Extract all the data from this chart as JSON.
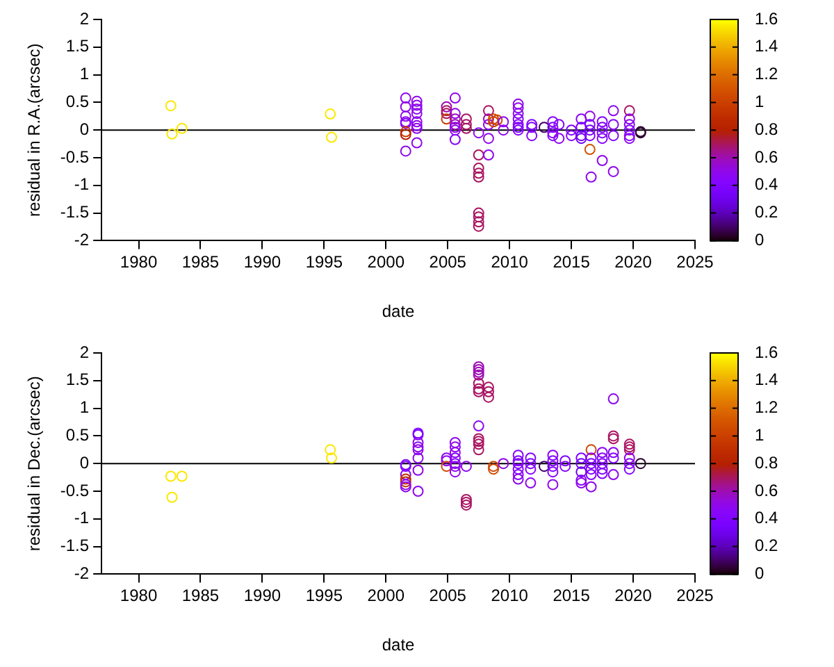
{
  "chart_data": [
    {
      "type": "scatter",
      "xlabel": "date",
      "ylabel": "residual in R.A.(arcsec)",
      "xlim": [
        1977,
        2025
      ],
      "ylim": [
        -2,
        2
      ],
      "xticks": [
        1980,
        1985,
        1990,
        1995,
        2000,
        2005,
        2010,
        2015,
        2020,
        2025
      ],
      "yticks": [
        -2,
        -1.5,
        -1,
        -0.5,
        0,
        0.5,
        1,
        1.5,
        2
      ],
      "clim": [
        0,
        1.6
      ],
      "cticks": [
        0,
        0.2,
        0.4,
        0.6,
        0.8,
        1,
        1.2,
        1.4,
        1.6
      ],
      "marker": "circle",
      "grid": false,
      "legend": false,
      "ref_lines": [
        {
          "axis": "y",
          "value": 0,
          "color": "#000000"
        }
      ],
      "series": [
        {
          "x": [
            1982.6,
            1982.7,
            1983.5,
            1995.5,
            1995.6,
            2001.6,
            2001.6,
            2001.6,
            2001.6,
            2001.6,
            2001.6,
            2001.6,
            2001.6,
            2002.5,
            2002.5,
            2002.5,
            2002.5,
            2002.5,
            2002.5,
            2002.5,
            2002.5,
            2004.9,
            2004.9,
            2004.9,
            2004.9,
            2005.6,
            2005.6,
            2005.6,
            2005.6,
            2005.6,
            2005.6,
            2005.6,
            2006.5,
            2006.5,
            2006.5,
            2007.5,
            2007.5,
            2007.5,
            2007.5,
            2007.5,
            2007.5,
            2007.5,
            2007.5,
            2007.5,
            2008.3,
            2008.3,
            2008.3,
            2008.3,
            2008.3,
            2008.7,
            2008.7,
            2009.0,
            2009.5,
            2009.5,
            2010.7,
            2010.7,
            2010.7,
            2010.7,
            2010.7,
            2010.7,
            2010.7,
            2011.8,
            2011.8,
            2011.8,
            2012.8,
            2013.5,
            2013.5,
            2013.5,
            2013.5,
            2014.0,
            2014.0,
            2015.0,
            2015.0,
            2015.8,
            2015.8,
            2015.8,
            2015.8,
            2016.5,
            2016.5,
            2016.5,
            2016.5,
            2016.5,
            2016.6,
            2017.5,
            2017.5,
            2017.5,
            2017.5,
            2017.5,
            2018.4,
            2018.4,
            2018.4,
            2018.4,
            2019.7,
            2019.7,
            2019.7,
            2019.7,
            2019.7,
            2019.7,
            2020.6,
            2020.6
          ],
          "values": [
            0.44,
            -0.07,
            0.03,
            0.29,
            -0.13,
            0.58,
            0.42,
            0.25,
            0.15,
            0.12,
            -0.03,
            -0.08,
            -0.38,
            0.52,
            0.45,
            0.38,
            0.3,
            0.15,
            0.08,
            0.03,
            -0.23,
            0.42,
            0.35,
            0.3,
            0.2,
            0.58,
            0.3,
            0.2,
            0.1,
            0.05,
            0,
            -0.17,
            0.2,
            0.1,
            0.03,
            -0.05,
            -0.45,
            -0.69,
            -0.78,
            -0.85,
            -1.5,
            -1.57,
            -1.66,
            -1.74,
            0.35,
            0.2,
            0.1,
            -0.15,
            -0.45,
            0.15,
            0.2,
            0.18,
            0.15,
            0,
            0.47,
            0.4,
            0.3,
            0.2,
            0.1,
            0.05,
            0,
            0.1,
            0.05,
            -0.1,
            0.05,
            0.15,
            0.05,
            -0.05,
            -0.1,
            0.1,
            -0.15,
            0,
            -0.1,
            0.2,
            0.05,
            -0.1,
            -0.15,
            0.25,
            0.1,
            0,
            -0.1,
            -0.35,
            -0.85,
            0.15,
            0.05,
            -0.05,
            -0.15,
            -0.55,
            0.35,
            0.1,
            -0.1,
            -0.75,
            0.35,
            0.2,
            0.1,
            0,
            -0.1,
            -0.15,
            -0.05,
            -0.03
          ],
          "cvalues": [
            1.55,
            1.55,
            1.55,
            1.55,
            1.55,
            0.5,
            0.5,
            0.5,
            0.5,
            0.45,
            1.0,
            0.8,
            0.5,
            0.5,
            0.5,
            0.5,
            0.5,
            0.5,
            0.5,
            0.5,
            0.5,
            0.6,
            0.7,
            0.7,
            1.0,
            0.5,
            0.5,
            0.6,
            0.6,
            0.5,
            0.5,
            0.45,
            0.7,
            0.7,
            0.7,
            0.5,
            0.7,
            0.7,
            0.7,
            0.7,
            0.7,
            0.7,
            0.7,
            0.7,
            0.7,
            0.6,
            0.5,
            0.5,
            0.5,
            1.05,
            1.05,
            1.05,
            0.5,
            0.5,
            0.5,
            0.5,
            0.5,
            0.45,
            0.45,
            0.4,
            0.4,
            0.4,
            0.4,
            0.45,
            0.1,
            0.45,
            0.4,
            0.4,
            0.45,
            0.45,
            0.5,
            0.4,
            0.45,
            0.45,
            0.35,
            0.3,
            0.3,
            0.5,
            0.4,
            0.35,
            0.4,
            1.1,
            0.5,
            0.45,
            0.4,
            0.4,
            0.45,
            0.5,
            0.5,
            0.45,
            0.45,
            0.5,
            0.7,
            0.5,
            0.5,
            0.4,
            0.45,
            0.5,
            0.05,
            0.05
          ]
        }
      ]
    },
    {
      "type": "scatter",
      "xlabel": "date",
      "ylabel": "residual in Dec.(arcsec)",
      "xlim": [
        1977,
        2025
      ],
      "ylim": [
        -2,
        2
      ],
      "xticks": [
        1980,
        1985,
        1990,
        1995,
        2000,
        2005,
        2010,
        2015,
        2020,
        2025
      ],
      "yticks": [
        -2,
        -1.5,
        -1,
        -0.5,
        0,
        0.5,
        1,
        1.5,
        2
      ],
      "clim": [
        0,
        1.6
      ],
      "cticks": [
        0,
        0.2,
        0.4,
        0.6,
        0.8,
        1,
        1.2,
        1.4,
        1.6
      ],
      "marker": "circle",
      "grid": false,
      "legend": false,
      "ref_lines": [
        {
          "axis": "y",
          "value": 0,
          "color": "#000000"
        }
      ],
      "series": [
        {
          "x": [
            1982.6,
            1982.7,
            1983.5,
            1995.5,
            1995.6,
            2001.6,
            2001.6,
            2001.6,
            2001.6,
            2001.6,
            2001.6,
            2001.6,
            2002.6,
            2002.6,
            2002.6,
            2002.6,
            2002.6,
            2002.6,
            2002.6,
            2002.6,
            2004.9,
            2004.9,
            2004.9,
            2005.6,
            2005.6,
            2005.6,
            2005.6,
            2005.6,
            2005.6,
            2005.6,
            2006.5,
            2006.5,
            2006.5,
            2006.5,
            2007.5,
            2007.5,
            2007.5,
            2007.5,
            2007.5,
            2007.5,
            2007.5,
            2007.5,
            2007.5,
            2007.5,
            2007.5,
            2007.5,
            2008.3,
            2008.3,
            2008.3,
            2008.7,
            2008.7,
            2009.5,
            2010.7,
            2010.7,
            2010.7,
            2010.7,
            2010.7,
            2010.7,
            2011.7,
            2011.7,
            2011.7,
            2011.7,
            2012.8,
            2013.5,
            2013.5,
            2013.5,
            2013.5,
            2013.5,
            2014.5,
            2014.5,
            2015.8,
            2015.8,
            2015.8,
            2015.8,
            2015.8,
            2016.6,
            2016.6,
            2016.6,
            2016.6,
            2016.6,
            2016.6,
            2017.5,
            2017.5,
            2017.5,
            2017.5,
            2017.5,
            2018.4,
            2018.4,
            2018.4,
            2018.4,
            2018.4,
            2018.4,
            2019.7,
            2019.7,
            2019.7,
            2019.7,
            2019.7,
            2019.7,
            2020.6
          ],
          "values": [
            -0.23,
            -0.61,
            -0.23,
            0.25,
            0.1,
            -0.02,
            -0.05,
            -0.2,
            -0.28,
            -0.33,
            -0.38,
            -0.42,
            0.55,
            0.52,
            0.38,
            0.3,
            0.25,
            0.1,
            -0.12,
            -0.5,
            0.1,
            0.05,
            -0.05,
            0.38,
            0.3,
            0.2,
            0.1,
            0,
            -0.05,
            -0.15,
            -0.05,
            -0.65,
            -0.7,
            -0.75,
            1.75,
            1.7,
            1.65,
            1.6,
            1.45,
            1.35,
            1.3,
            0.68,
            0.45,
            0.4,
            0.35,
            0.25,
            1.38,
            1.3,
            1.2,
            -0.05,
            -0.1,
            0,
            0.15,
            0.05,
            0,
            -0.1,
            -0.2,
            -0.28,
            0.1,
            0,
            -0.1,
            -0.35,
            -0.05,
            0.15,
            0.05,
            -0.05,
            -0.15,
            -0.38,
            0.05,
            -0.05,
            0.1,
            0,
            -0.15,
            -0.3,
            -0.35,
            0.25,
            0.1,
            0,
            -0.1,
            -0.2,
            -0.42,
            0.2,
            0.1,
            0,
            -0.1,
            -0.18,
            1.17,
            0.5,
            0.45,
            0.2,
            0.1,
            -0.2,
            0.35,
            0.3,
            0.25,
            0.1,
            0,
            -0.1,
            0
          ],
          "cvalues": [
            1.55,
            1.55,
            1.55,
            1.55,
            1.55,
            0.4,
            0.4,
            0.45,
            0.9,
            0.9,
            0.5,
            0.5,
            0.4,
            0.4,
            0.5,
            0.5,
            0.5,
            0.5,
            0.5,
            0.5,
            0.5,
            0.5,
            1.05,
            0.5,
            0.5,
            0.5,
            0.45,
            0.45,
            0.5,
            0.5,
            0.5,
            0.7,
            0.7,
            0.7,
            0.6,
            0.6,
            0.6,
            0.6,
            0.7,
            0.7,
            0.7,
            0.5,
            0.7,
            0.7,
            0.7,
            0.7,
            0.7,
            0.7,
            0.7,
            1.05,
            1.05,
            0.5,
            0.45,
            0.4,
            0.4,
            0.45,
            0.45,
            0.5,
            0.45,
            0.4,
            0.45,
            0.5,
            0.1,
            0.45,
            0.4,
            0.4,
            0.45,
            0.5,
            0.4,
            0.45,
            0.4,
            0.35,
            0.3,
            0.45,
            0.5,
            1.05,
            0.45,
            0.4,
            0.4,
            0.45,
            0.5,
            0.45,
            0.45,
            0.4,
            0.4,
            0.45,
            0.5,
            0.7,
            0.7,
            0.45,
            0.45,
            0.5,
            0.7,
            0.7,
            0.7,
            0.5,
            0.45,
            0.45,
            0.05
          ]
        }
      ]
    }
  ]
}
